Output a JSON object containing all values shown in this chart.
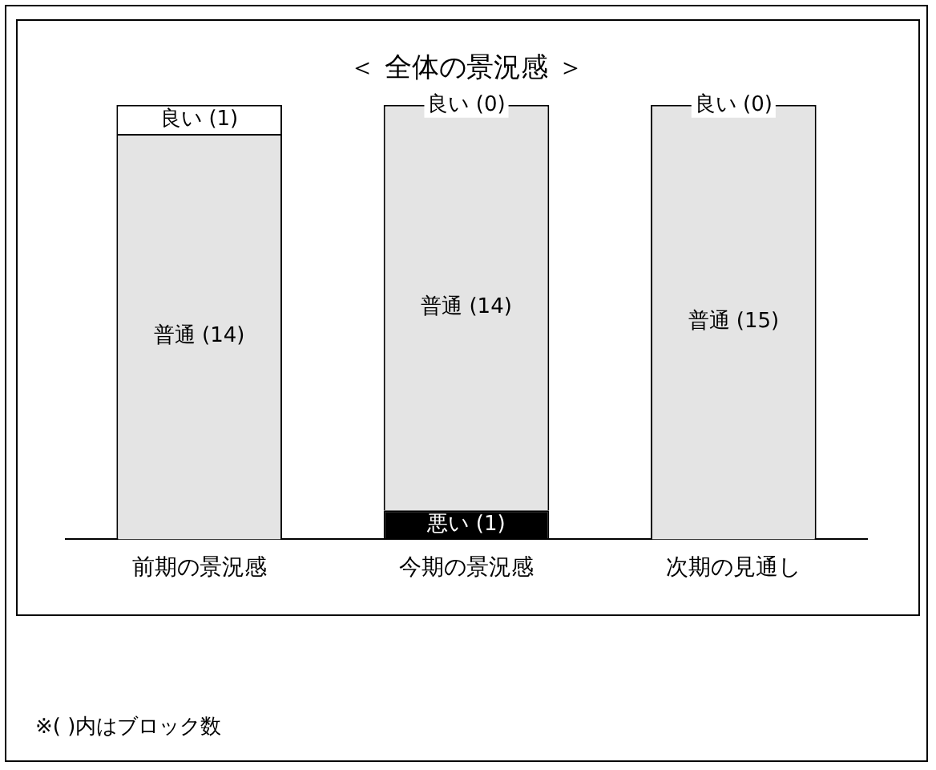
{
  "chart_data": {
    "type": "bar",
    "stacked": true,
    "title": "＜ 全体の景況感 ＞",
    "categories": [
      "前期の景況感",
      "今期の景況感",
      "次期の見通し"
    ],
    "series": [
      {
        "color": "#000000",
        "values": [
          0,
          1,
          0
        ],
        "value_labels": [
          null,
          "悪い (1)",
          null
        ]
      },
      {
        "color": "#e4e4e4",
        "values": [
          14,
          14,
          15
        ],
        "value_labels": [
          "普通 (14)",
          "普通 (14)",
          "普通 (15)"
        ]
      },
      {
        "color": "#ffffff",
        "values": [
          1,
          0,
          0
        ],
        "value_labels": [
          "良い (1)",
          "良い (0)",
          "良い (0)"
        ]
      }
    ],
    "ylim": [
      0,
      15
    ],
    "tick_labels": "x",
    "grid": false,
    "legend": false,
    "annotations": [
      "※( )内はブロック数"
    ]
  }
}
